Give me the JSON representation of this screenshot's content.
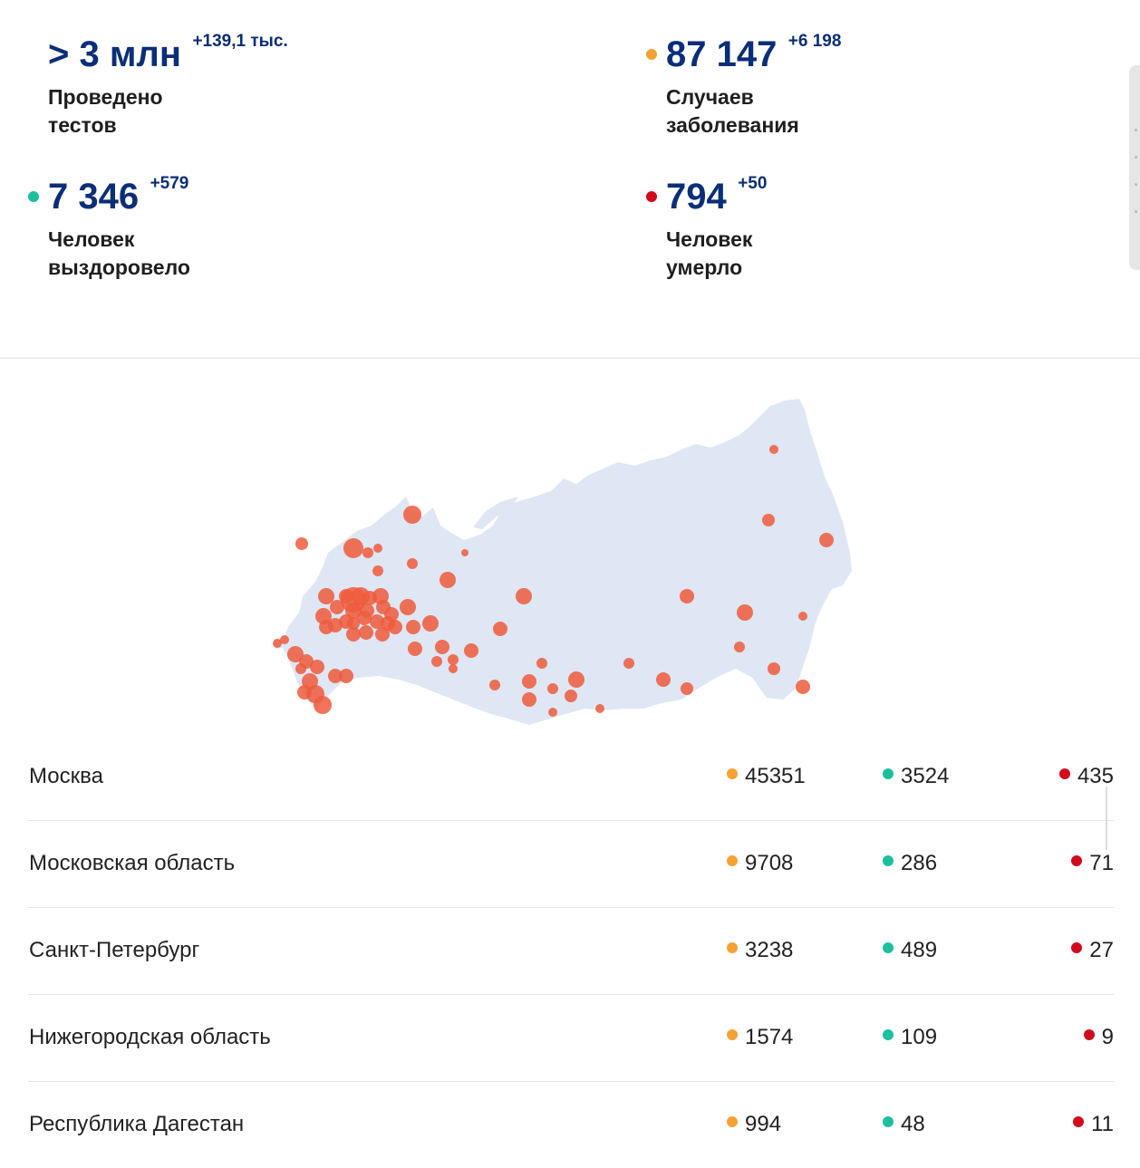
{
  "colors": {
    "accent": "#0b2e78",
    "cases": "#f4a234",
    "recovered": "#1dbf9d",
    "deaths": "#d10a1d",
    "map_land": "#dfe6f4",
    "map_dot": "#ef5a3c"
  },
  "stats": {
    "tests": {
      "value": "> 3 млн",
      "delta": "+139,1 тыс.",
      "label": "Проведено\nтестов"
    },
    "cases": {
      "value": "87 147",
      "delta": "+6 198",
      "label": "Случаев\nзаболевания"
    },
    "recovered": {
      "value": "7 346",
      "delta": "+579",
      "label": "Человек\nвыздоровело"
    },
    "deaths": {
      "value": "794",
      "delta": "+50",
      "label": "Человек\nумерло"
    }
  },
  "regions": [
    {
      "name": "Москва",
      "cases": "45351",
      "recovered": "3524",
      "deaths": "435"
    },
    {
      "name": "Московская область",
      "cases": "9708",
      "recovered": "286",
      "deaths": "71"
    },
    {
      "name": "Санкт-Петербург",
      "cases": "3238",
      "recovered": "489",
      "deaths": "27"
    },
    {
      "name": "Нижегородская область",
      "cases": "1574",
      "recovered": "109",
      "deaths": "9"
    },
    {
      "name": "Республика Дагестан",
      "cases": "994",
      "recovered": "48",
      "deaths": "11"
    }
  ]
}
